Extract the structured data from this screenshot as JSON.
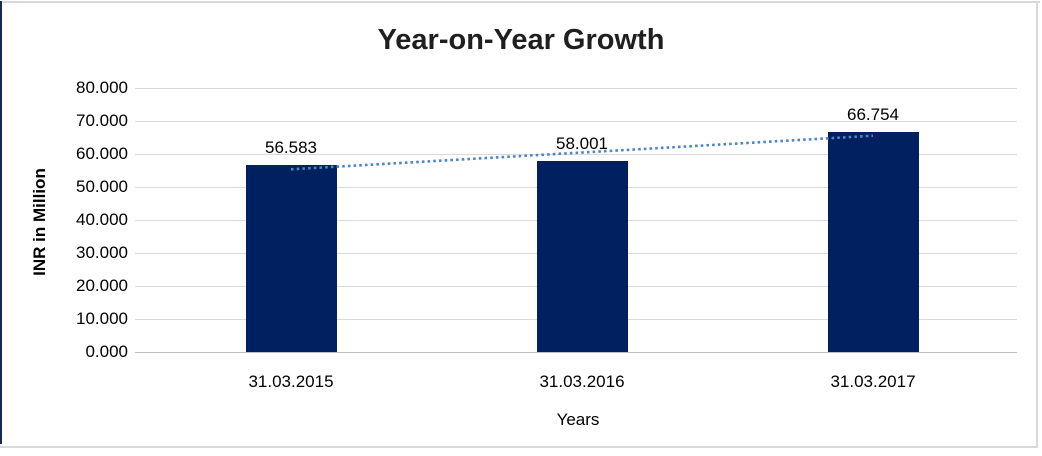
{
  "frame": {
    "accent_color": "#17294f",
    "border_color": "#d9d9d9"
  },
  "chart_data": {
    "type": "bar",
    "title": "Year-on-Year Growth",
    "categories": [
      "31.03.2015",
      "31.03.2016",
      "31.03.2017"
    ],
    "values": [
      56.583,
      58.001,
      66.754
    ],
    "data_labels": [
      "56.583",
      "58.001",
      "66.754"
    ],
    "xlabel": "Years",
    "ylabel": "INR in Million",
    "ylim": [
      0,
      80
    ],
    "ytick_step": 10,
    "ytick_labels": [
      "80.000",
      "70.000",
      "60.000",
      "50.000",
      "40.000",
      "30.000",
      "20.000",
      "10.000",
      "0.000"
    ],
    "grid": true,
    "legend": "none",
    "bar_color": "#002060",
    "gridline_color": "#d9d9d9",
    "trendline": {
      "type": "linear",
      "style": "dotted",
      "color": "#4a86c8"
    }
  }
}
